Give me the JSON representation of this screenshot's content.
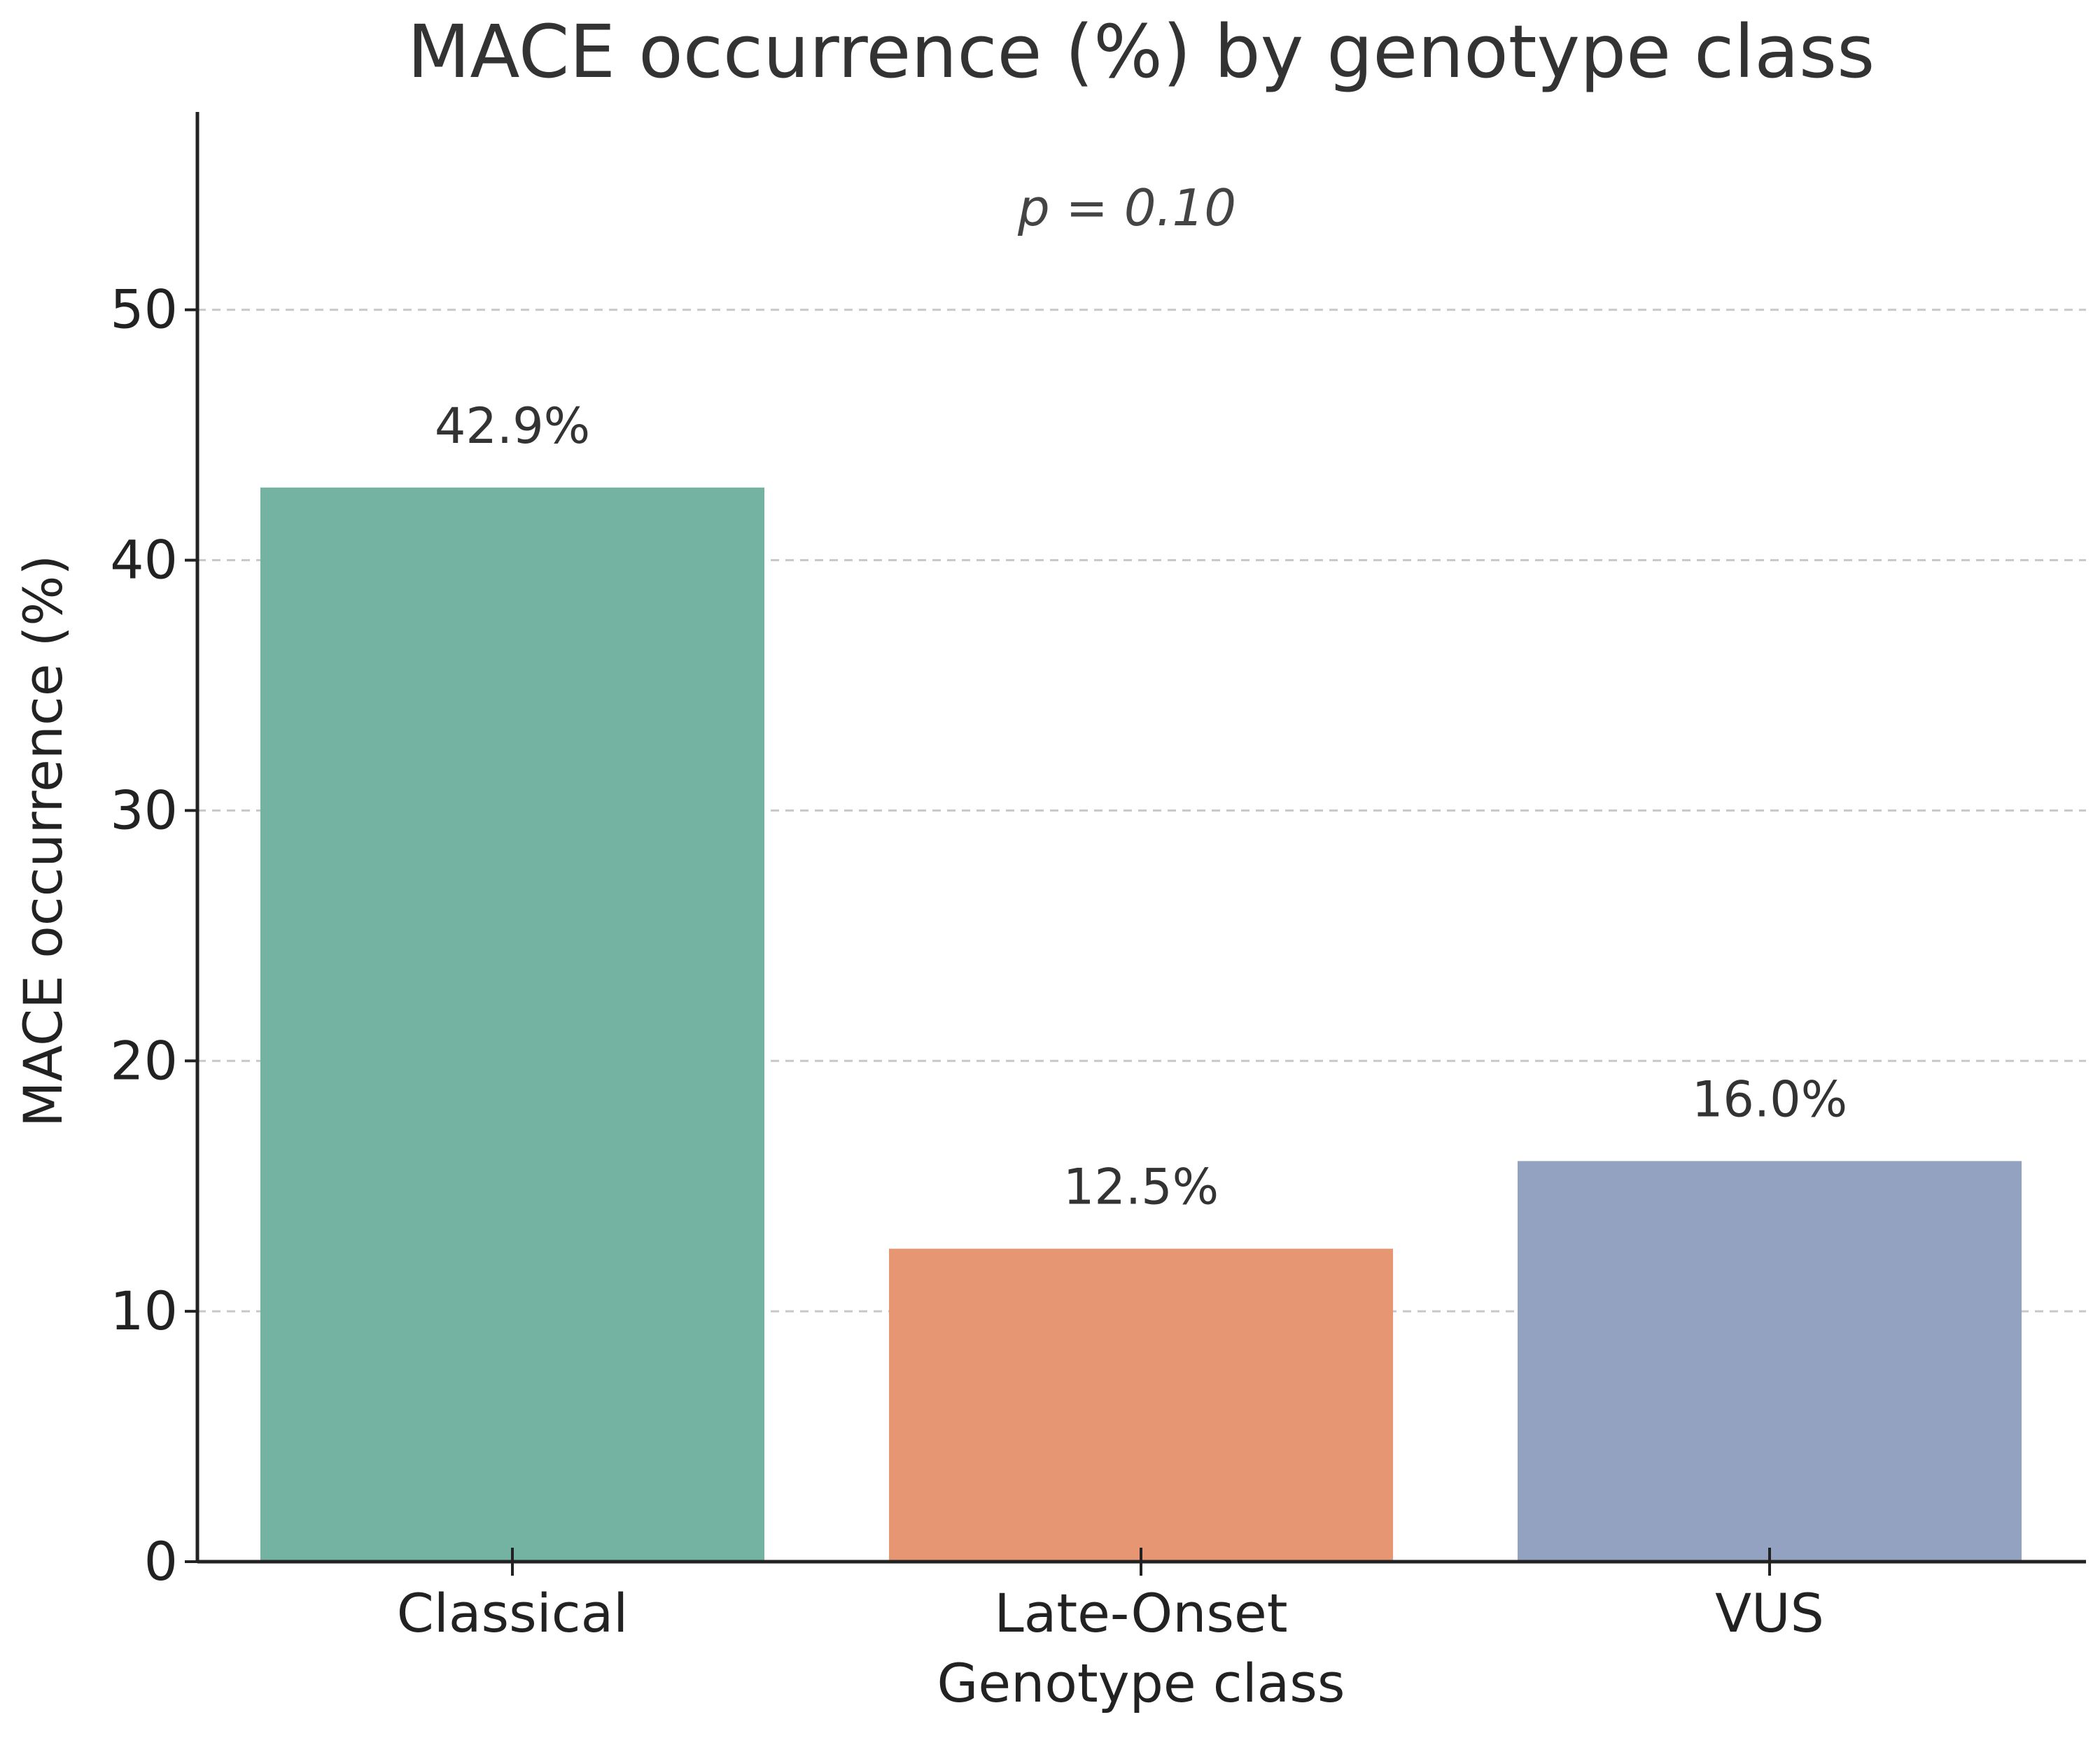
{
  "chart_data": {
    "type": "bar",
    "title": "MACE occurrence (%) by genotype class",
    "annotation": "p = 0.10",
    "xlabel": "Genotype class",
    "ylabel": "MACE occurrence (%)",
    "categories": [
      "Classical",
      "Late-Onset",
      "VUS"
    ],
    "values": [
      42.9,
      12.5,
      16.0
    ],
    "data_labels": [
      "42.9%",
      "12.5%",
      "16.0%"
    ],
    "colors": [
      "#74b3a1",
      "#e79674",
      "#93a2c0"
    ],
    "ylim": [
      0,
      57.9
    ],
    "yticks": [
      0,
      10,
      20,
      30,
      40,
      50
    ],
    "ytick_labels": [
      "0",
      "10",
      "20",
      "30",
      "40",
      "50"
    ],
    "grid": true,
    "grid_style": "dashed",
    "legend": false
  }
}
